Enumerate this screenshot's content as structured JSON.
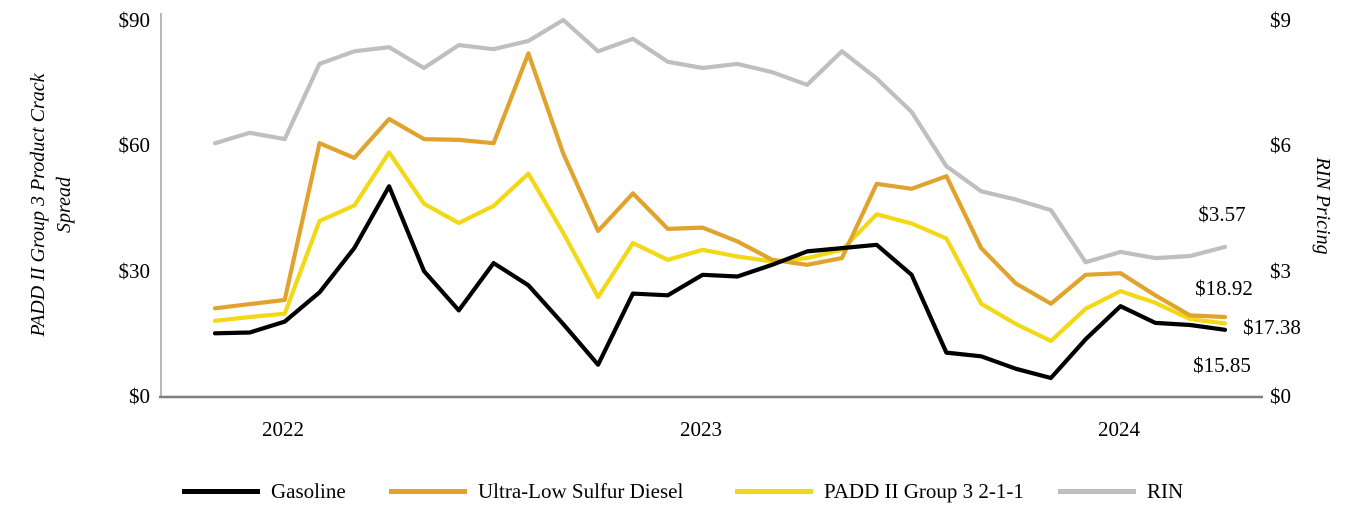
{
  "chart_data": {
    "type": "line",
    "title": "",
    "x": [
      "2021-11",
      "2021-12",
      "2022-01",
      "2022-02",
      "2022-03",
      "2022-04",
      "2022-05",
      "2022-06",
      "2022-07",
      "2022-08",
      "2022-09",
      "2022-10",
      "2022-11",
      "2022-12",
      "2023-01",
      "2023-02",
      "2023-03",
      "2023-04",
      "2023-05",
      "2023-06",
      "2023-07",
      "2023-08",
      "2023-09",
      "2023-10",
      "2023-11",
      "2023-12",
      "2024-01",
      "2024-02",
      "2024-03",
      "2024-04"
    ],
    "x_tick_labels": [
      "2022",
      "2023",
      "2024"
    ],
    "x_tick_indices": [
      2,
      14,
      26
    ],
    "left_axis": {
      "label": "PADD II Group 3 Product Crack Spread",
      "label_lines": [
        "PADD II Group 3 Product Crack",
        "Spread"
      ],
      "ticks": [
        "$90",
        "$60",
        "$30",
        "$0"
      ],
      "tick_values": [
        90,
        60,
        30,
        0
      ],
      "range": [
        0,
        90
      ]
    },
    "right_axis": {
      "label": "RIN Pricing",
      "ticks": [
        "$9",
        "$6",
        "$3",
        "$0"
      ],
      "tick_values": [
        9,
        6,
        3,
        0
      ],
      "range": [
        0,
        9
      ]
    },
    "grid": false,
    "legend_position": "bottom",
    "series": [
      {
        "name": "Gasoline",
        "color": "#000000",
        "axis": "left",
        "end_label": "$15.85",
        "values": [
          15.0,
          15.2,
          17.8,
          24.8,
          35.4,
          50.2,
          29.9,
          20.5,
          31.8,
          26.5,
          17.2,
          7.5,
          24.5,
          24.1,
          29.0,
          28.6,
          31.4,
          34.6,
          35.4,
          36.2,
          29.0,
          10.4,
          9.5,
          6.5,
          4.3,
          13.6,
          21.5,
          17.5,
          17.0,
          15.85
        ]
      },
      {
        "name": "Ultra-Low Sulfur Diesel",
        "color": "#DFA32E",
        "axis": "left",
        "end_label": "$18.92",
        "values": [
          21.0,
          22.0,
          23.0,
          60.5,
          57.0,
          66.3,
          61.5,
          61.3,
          60.5,
          82.0,
          58.0,
          39.5,
          48.5,
          40.0,
          40.3,
          37.0,
          32.6,
          31.4,
          33.0,
          50.8,
          49.6,
          52.6,
          35.4,
          26.9,
          22.1,
          29.0,
          29.4,
          24.1,
          19.3,
          18.92
        ]
      },
      {
        "name": "PADD II Group 3 2-1-1",
        "color": "#F2D816",
        "axis": "left",
        "end_label": "$17.38",
        "values": [
          18.0,
          18.9,
          19.7,
          41.9,
          45.6,
          58.3,
          46.0,
          41.4,
          45.5,
          53.2,
          39.0,
          23.7,
          36.6,
          32.6,
          35.0,
          33.4,
          32.2,
          33.0,
          35.0,
          43.5,
          41.3,
          37.7,
          22.1,
          17.2,
          13.2,
          20.9,
          25.1,
          22.3,
          18.4,
          17.38
        ]
      },
      {
        "name": "RIN",
        "color": "#BFBFBF",
        "axis": "right",
        "end_label": "$3.57",
        "values": [
          6.05,
          6.3,
          6.15,
          7.95,
          8.25,
          8.35,
          7.85,
          8.4,
          8.3,
          8.5,
          9.0,
          8.25,
          8.55,
          8.0,
          7.85,
          7.95,
          7.75,
          7.45,
          8.25,
          7.6,
          6.8,
          5.5,
          4.9,
          4.7,
          4.45,
          3.2,
          3.45,
          3.3,
          3.35,
          3.57
        ]
      }
    ],
    "axis_line_color": "#808080"
  }
}
